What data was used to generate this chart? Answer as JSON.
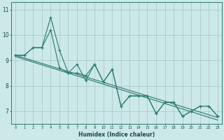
{
  "xlabel": "Humidex (Indice chaleur)",
  "background_color": "#cce8e8",
  "grid_color": "#aacccc",
  "line_color": "#2a7a6a",
  "x_zigzag": [
    0,
    1,
    2,
    3,
    4,
    5,
    6,
    7,
    8,
    9,
    10,
    11,
    12,
    13,
    14,
    15,
    16,
    17,
    18,
    19,
    20,
    21,
    22,
    23
  ],
  "y_line1": [
    9.2,
    9.2,
    9.5,
    9.5,
    10.2,
    8.7,
    8.5,
    8.85,
    8.2,
    8.85,
    8.15,
    8.65,
    7.2,
    7.6,
    7.6,
    7.6,
    6.9,
    7.35,
    7.35,
    6.8,
    7.0,
    7.2,
    7.2,
    6.8
  ],
  "y_line2": [
    9.2,
    9.2,
    9.5,
    9.5,
    10.7,
    9.4,
    8.5,
    8.5,
    8.4,
    8.85,
    8.15,
    8.65,
    7.2,
    7.6,
    7.6,
    7.6,
    6.9,
    7.35,
    7.35,
    6.8,
    7.0,
    7.2,
    7.2,
    6.8
  ],
  "trend1_x": [
    0,
    23
  ],
  "trend1_y": [
    9.2,
    6.75
  ],
  "trend2_x": [
    0,
    23
  ],
  "trend2_y": [
    9.15,
    6.65
  ],
  "ylim": [
    6.5,
    11.3
  ],
  "xlim": [
    -0.5,
    23.5
  ],
  "yticks": [
    7,
    8,
    9,
    10,
    11
  ],
  "xticks": [
    0,
    1,
    2,
    3,
    4,
    5,
    6,
    7,
    8,
    9,
    10,
    11,
    12,
    13,
    14,
    15,
    16,
    17,
    18,
    19,
    20,
    21,
    22,
    23
  ]
}
